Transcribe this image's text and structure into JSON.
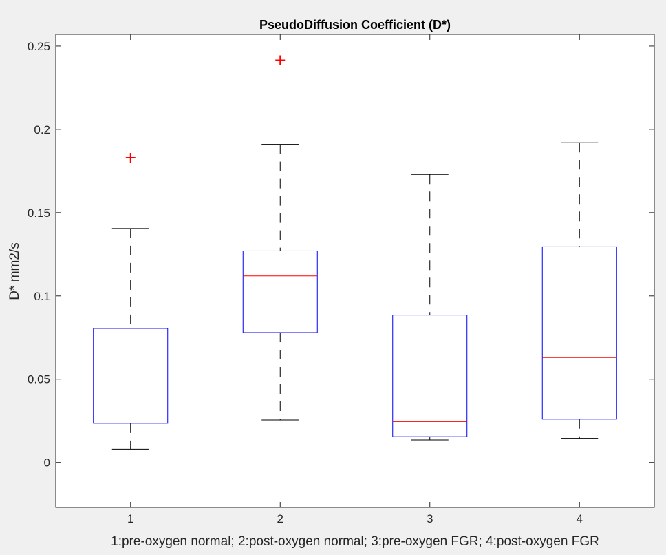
{
  "chart_data": {
    "type": "boxplot",
    "title": "PseudoDiffusion Coefficient (D*)",
    "xlabel": "1:pre-oxygen normal; 2:post-oxygen normal; 3:pre-oxygen FGR; 4:post-oxygen FGR",
    "ylabel": "D* mm2/s",
    "categories": [
      "1",
      "2",
      "3",
      "4"
    ],
    "ylim": [
      -0.027,
      0.257
    ],
    "yticks": [
      0,
      0.05,
      0.1,
      0.15,
      0.2,
      0.25
    ],
    "ytick_labels": [
      "0",
      "0.05",
      "0.1",
      "0.15",
      "0.2",
      "0.25"
    ],
    "boxes": [
      {
        "category": "1",
        "whisker_low": 0.008,
        "q1": 0.0235,
        "median": 0.0435,
        "q3": 0.0805,
        "whisker_high": 0.1405,
        "outliers": [
          0.183
        ]
      },
      {
        "category": "2",
        "whisker_low": 0.0255,
        "q1": 0.078,
        "median": 0.112,
        "q3": 0.127,
        "whisker_high": 0.191,
        "outliers": [
          0.2415
        ]
      },
      {
        "category": "3",
        "whisker_low": 0.0135,
        "q1": 0.0155,
        "median": 0.0245,
        "q3": 0.0885,
        "whisker_high": 0.173,
        "outliers": []
      },
      {
        "category": "4",
        "whisker_low": 0.0145,
        "q1": 0.026,
        "median": 0.063,
        "q3": 0.1295,
        "whisker_high": 0.192,
        "outliers": []
      }
    ],
    "colors": {
      "box": "#0000ff",
      "median": "#ff0000",
      "whisker": "#000000",
      "outlier": "#ff0000",
      "axis": "#262626"
    }
  }
}
